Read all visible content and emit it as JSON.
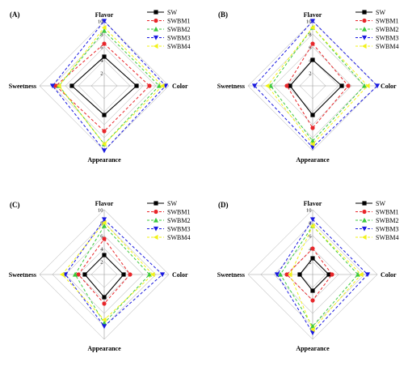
{
  "series_names": [
    "SW",
    "SWBM1",
    "SWBM2",
    "SWBM3",
    "SWBM4"
  ],
  "series_colors": [
    "#000000",
    "#e8262a",
    "#3ec93e",
    "#1a1ae0",
    "#f2f21a"
  ],
  "series_markers": [
    "square",
    "circle",
    "triangle-up",
    "triangle-down",
    "triangle-left"
  ],
  "chart_data": [
    {
      "type": "radar",
      "panel_label": "(A)",
      "axes": [
        "Flavor",
        "Color",
        "Appearance",
        "Sweetness"
      ],
      "rmax": 10,
      "ticks": [
        2,
        4,
        6,
        8,
        10
      ],
      "series": [
        {
          "name": "SW",
          "values": [
            4.5,
            5.0,
            4.5,
            5.0
          ]
        },
        {
          "name": "SWBM1",
          "values": [
            6.5,
            7.0,
            7.0,
            7.5
          ]
        },
        {
          "name": "SWBM2",
          "values": [
            8.5,
            8.5,
            9.0,
            7.0
          ]
        },
        {
          "name": "SWBM3",
          "values": [
            10.0,
            9.5,
            10.0,
            8.0
          ]
        },
        {
          "name": "SWBM4",
          "values": [
            9.0,
            9.0,
            9.0,
            7.0
          ]
        }
      ]
    },
    {
      "type": "radar",
      "panel_label": "(B)",
      "axes": [
        "Flavor",
        "Color",
        "Appearance",
        "Sweetness"
      ],
      "rmax": 10,
      "ticks": [
        2,
        4,
        6,
        8,
        10
      ],
      "series": [
        {
          "name": "SW",
          "values": [
            4.0,
            4.5,
            4.5,
            3.5
          ]
        },
        {
          "name": "SWBM1",
          "values": [
            6.5,
            5.5,
            6.5,
            4.0
          ]
        },
        {
          "name": "SWBM2",
          "values": [
            9.0,
            8.0,
            8.5,
            6.5
          ]
        },
        {
          "name": "SWBM3",
          "values": [
            10.0,
            10.0,
            9.5,
            9.0
          ]
        },
        {
          "name": "SWBM4",
          "values": [
            9.0,
            8.5,
            9.0,
            7.0
          ]
        }
      ]
    },
    {
      "type": "radar",
      "panel_label": "(C)",
      "axes": [
        "Flavor",
        "Color",
        "Appearance",
        "Sweetness"
      ],
      "rmax": 10,
      "ticks": [
        2,
        4,
        6,
        8,
        10
      ],
      "series": [
        {
          "name": "SW",
          "values": [
            3.0,
            3.0,
            3.5,
            3.0
          ]
        },
        {
          "name": "SWBM1",
          "values": [
            5.5,
            4.0,
            4.5,
            4.0
          ]
        },
        {
          "name": "SWBM2",
          "values": [
            7.5,
            7.0,
            7.5,
            4.5
          ]
        },
        {
          "name": "SWBM3",
          "values": [
            8.5,
            9.0,
            8.0,
            6.0
          ]
        },
        {
          "name": "SWBM4",
          "values": [
            8.0,
            7.5,
            7.0,
            6.5
          ]
        }
      ]
    },
    {
      "type": "radar",
      "panel_label": "(D)",
      "axes": [
        "Flavor",
        "Color",
        "Appearance",
        "Sweetness"
      ],
      "rmax": 10,
      "ticks": [
        2,
        4,
        6,
        8,
        10
      ],
      "series": [
        {
          "name": "SW",
          "values": [
            2.5,
            2.5,
            2.5,
            2.0
          ]
        },
        {
          "name": "SWBM1",
          "values": [
            4.0,
            3.0,
            4.0,
            4.0
          ]
        },
        {
          "name": "SWBM2",
          "values": [
            7.5,
            7.0,
            8.0,
            5.0
          ]
        },
        {
          "name": "SWBM3",
          "values": [
            8.5,
            8.5,
            9.0,
            5.5
          ]
        },
        {
          "name": "SWBM4",
          "values": [
            7.5,
            7.5,
            8.5,
            3.5
          ]
        }
      ]
    }
  ]
}
